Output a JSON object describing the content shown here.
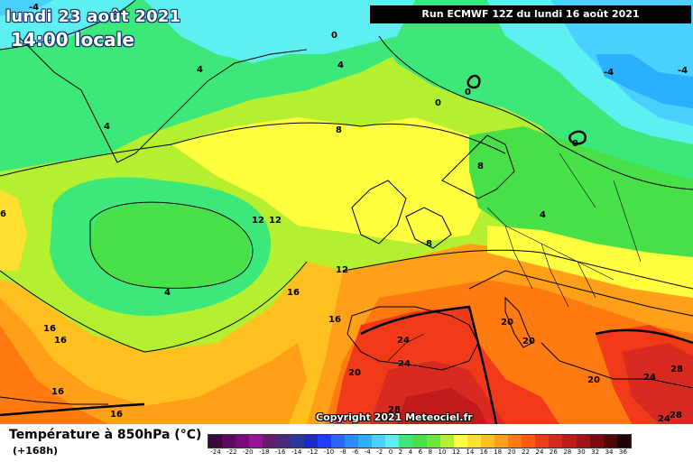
{
  "header": {
    "date_line": "lundi 23 août 2021",
    "time_line": "14:00 locale",
    "run_info": "Run ECMWF 12Z du lundi 16 août 2021"
  },
  "footer": {
    "variable_title": "Température à 850hPa (°C)",
    "forecast_hour": "(+168h)",
    "copyright": "Copyright 2021 Meteociel.fr"
  },
  "legend": {
    "steps": [
      {
        "label": "-24",
        "color": "#3a0a3a"
      },
      {
        "label": "-22",
        "color": "#5c0a5c"
      },
      {
        "label": "-20",
        "color": "#7a0a7a"
      },
      {
        "label": "-18",
        "color": "#9a149a"
      },
      {
        "label": "-16",
        "color": "#6a1a6a"
      },
      {
        "label": "-14",
        "color": "#4a2a7a"
      },
      {
        "label": "-12",
        "color": "#2a3a9a"
      },
      {
        "label": "-10",
        "color": "#1a2acc"
      },
      {
        "label": "-8",
        "color": "#1e3cff"
      },
      {
        "label": "-6",
        "color": "#2a66ff"
      },
      {
        "label": "-4",
        "color": "#2a8cff"
      },
      {
        "label": "-2",
        "color": "#2ab0ff"
      },
      {
        "label": "0",
        "color": "#4ad0ff"
      },
      {
        "label": "2",
        "color": "#5ef0f0"
      },
      {
        "label": "4",
        "color": "#3ce87a"
      },
      {
        "label": "6",
        "color": "#48e048"
      },
      {
        "label": "8",
        "color": "#6ee838"
      },
      {
        "label": "10",
        "color": "#b4f030"
      },
      {
        "label": "12",
        "color": "#ffff40"
      },
      {
        "label": "14",
        "color": "#ffe030"
      },
      {
        "label": "16",
        "color": "#ffc020"
      },
      {
        "label": "18",
        "color": "#ffa018"
      },
      {
        "label": "20",
        "color": "#ff7a10"
      },
      {
        "label": "22",
        "color": "#ff5a10"
      },
      {
        "label": "24",
        "color": "#f03a1a"
      },
      {
        "label": "26",
        "color": "#d82a20"
      },
      {
        "label": "28",
        "color": "#c01a1a"
      },
      {
        "label": "30",
        "color": "#a0141a"
      },
      {
        "label": "32",
        "color": "#7a0a10"
      },
      {
        "label": "34",
        "color": "#500808"
      },
      {
        "label": "36",
        "color": "#200404"
      }
    ]
  },
  "isotherm_labels": [
    {
      "text": "-4"
    },
    {
      "text": "0"
    },
    {
      "text": "4"
    },
    {
      "text": "4"
    },
    {
      "text": "0"
    },
    {
      "text": "0"
    },
    {
      "text": "-4"
    },
    {
      "text": "-4"
    },
    {
      "text": "4"
    },
    {
      "text": "8"
    },
    {
      "text": "0"
    },
    {
      "text": "8"
    },
    {
      "text": "4"
    },
    {
      "text": "12"
    },
    {
      "text": "12"
    },
    {
      "text": "4"
    },
    {
      "text": "12"
    },
    {
      "text": "16"
    },
    {
      "text": "16"
    },
    {
      "text": "16"
    },
    {
      "text": "16"
    },
    {
      "text": "16"
    },
    {
      "text": "16"
    },
    {
      "text": "6"
    },
    {
      "text": "8"
    },
    {
      "text": "20"
    },
    {
      "text": "20"
    },
    {
      "text": "24"
    },
    {
      "text": "24"
    },
    {
      "text": "20"
    },
    {
      "text": "28"
    },
    {
      "text": "20"
    },
    {
      "text": "24"
    },
    {
      "text": "28"
    },
    {
      "text": "28"
    },
    {
      "text": "24"
    }
  ]
}
